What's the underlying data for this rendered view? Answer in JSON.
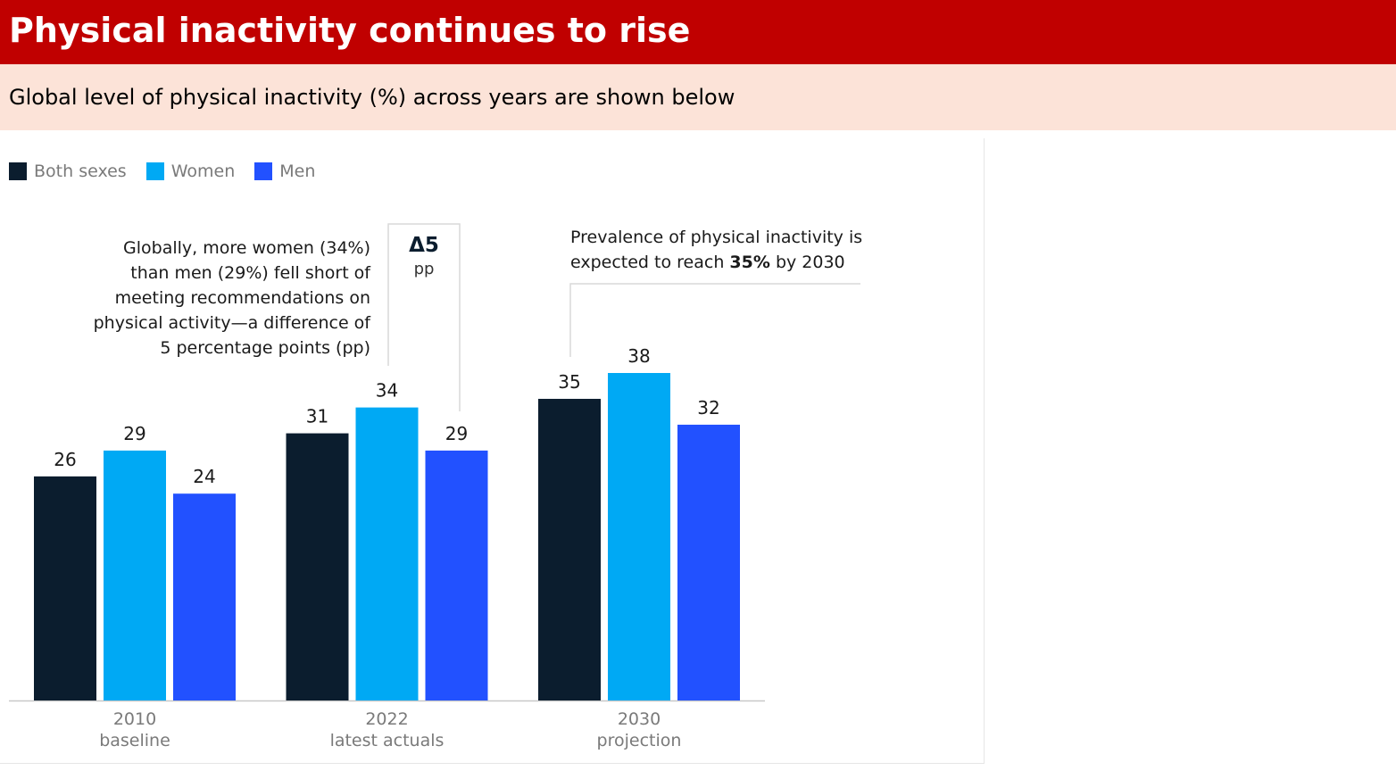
{
  "header": {
    "title": "Physical inactivity continues to rise"
  },
  "subheader": {
    "text": "Global level of physical inactivity (%) across years are shown below"
  },
  "colors": {
    "header_bg": "#c00000",
    "subheader_bg": "#fce3d8",
    "both_sexes": "#0b1d2e",
    "women": "#00a9f4",
    "men": "#2251ff"
  },
  "legend": [
    {
      "label": "Both sexes",
      "color": "#0b1d2e"
    },
    {
      "label": "Women",
      "color": "#00a9f4"
    },
    {
      "label": "Men",
      "color": "#2251ff"
    }
  ],
  "annotations": {
    "left": {
      "line1": "Globally, more women (34%)",
      "line2": "than men (29%) fell short of",
      "line3_bold": "meeting recommendations",
      "line3_rest": " on",
      "line4": "physical activity—a difference of",
      "line5": "5 percentage points (pp)"
    },
    "delta": {
      "value": "Δ5",
      "unit": "pp"
    },
    "right": {
      "line1": "Prevalence of physical inactivity is",
      "line2_a": "expected to ",
      "line2_b": "reach ",
      "line2_c": "35%",
      "line2_d": " by 2030"
    }
  },
  "chart_data": {
    "type": "bar",
    "title": "",
    "xlabel": "",
    "ylabel": "",
    "categories": [
      {
        "line1": "2010",
        "line2": "baseline"
      },
      {
        "line1": "2022",
        "line2": "latest actuals"
      },
      {
        "line1": "2030",
        "line2": "projection"
      }
    ],
    "series": [
      {
        "name": "Both sexes",
        "color": "#0b1d2e",
        "values": [
          26,
          31,
          35
        ]
      },
      {
        "name": "Women",
        "color": "#00a9f4",
        "values": [
          29,
          34,
          38
        ]
      },
      {
        "name": "Men",
        "color": "#2251ff",
        "values": [
          24,
          29,
          32
        ]
      }
    ],
    "ylim": [
      0,
      38
    ],
    "grid": false,
    "legend_position": "top-left"
  }
}
